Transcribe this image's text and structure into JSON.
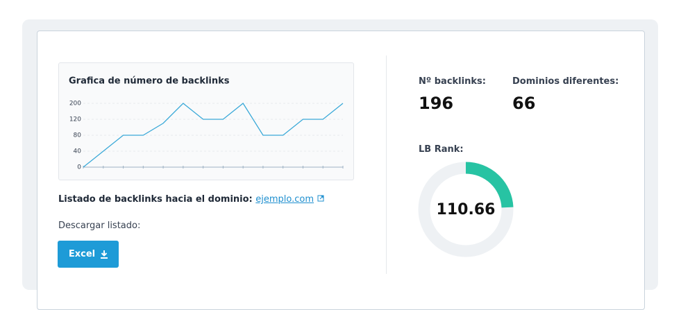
{
  "chart_data": {
    "type": "line",
    "title": "Grafica de número de backlinks",
    "categories": [
      null,
      null,
      null,
      null,
      null,
      null,
      null,
      null,
      null,
      null,
      null,
      null,
      null,
      null
    ],
    "values": [
      0,
      40,
      80,
      80,
      110,
      200,
      120,
      120,
      200,
      80,
      80,
      120,
      120,
      200
    ],
    "color": "#3aa9d8",
    "ylim": [
      0,
      200
    ],
    "yticks": [
      0,
      40,
      80,
      120,
      200
    ],
    "grid": true
  },
  "links": {
    "label": "Listado de backlinks hacia el dominio:",
    "link": "ejemplo.com"
  },
  "download": {
    "label": "Descargar listado:",
    "button": "Excel"
  },
  "stats": [
    {
      "label": "Nº backlinks:",
      "value": 196
    },
    {
      "label": "Dominios diferentes:",
      "value": 66
    }
  ],
  "rank": {
    "label": "LB Rank:",
    "value": 110.66
  }
}
